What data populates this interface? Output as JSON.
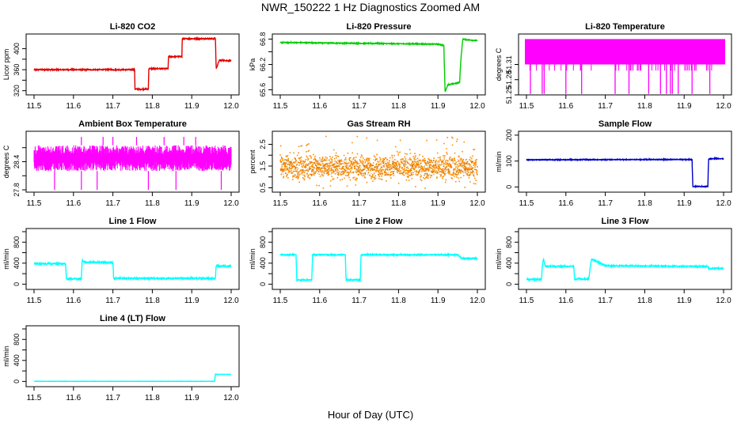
{
  "figure": {
    "title": "NWR_150222  1 Hz Diagnostics Zoomed AM",
    "xlabel": "Hour of Day (UTC)"
  },
  "chart_data": [
    {
      "type": "line",
      "title": "Li-820 CO2",
      "ylabel": "Licor ppm",
      "color": "#e00000",
      "xlim": [
        11.5,
        12.0
      ],
      "ylim": [
        312,
        428
      ],
      "xticks": [
        "11.5",
        "11.6",
        "11.7",
        "11.8",
        "11.9",
        "12.0"
      ],
      "yticks": [
        320,
        360,
        400
      ],
      "yticks_minor": [
        340,
        380
      ],
      "series": [
        {
          "x": [
            11.5,
            11.755,
            11.756,
            11.79,
            11.791,
            11.84,
            11.841,
            11.875,
            11.876,
            11.96,
            11.962,
            11.97,
            12.0
          ],
          "y": [
            360,
            360,
            323,
            323,
            362,
            362,
            385,
            385,
            419,
            419,
            362,
            378,
            377
          ],
          "noise": 1
        }
      ]
    },
    {
      "type": "line",
      "title": "Li-820 Pressure",
      "ylabel": "kPa",
      "color": "#00cc00",
      "xlim": [
        11.5,
        12.0
      ],
      "ylim": [
        65.48,
        66.92
      ],
      "xticks": [
        "11.5",
        "11.6",
        "11.7",
        "11.8",
        "11.9",
        "12.0"
      ],
      "yticks": [
        65.6,
        66.2,
        66.8
      ],
      "yticks_minor": [
        65.9,
        66.5
      ],
      "series": [
        {
          "x": [
            11.5,
            11.7,
            11.9,
            11.915,
            11.918,
            11.925,
            11.95,
            11.955,
            11.958,
            11.963,
            11.97,
            12.0
          ],
          "y": [
            66.72,
            66.7,
            66.68,
            66.65,
            65.55,
            65.72,
            65.76,
            65.78,
            66.3,
            66.8,
            66.79,
            66.76
          ],
          "noise": 0.01
        }
      ]
    },
    {
      "type": "line",
      "title": "Li-820 Temperature",
      "ylabel": "degrees C",
      "color": "#ff00ff",
      "xlim": [
        11.5,
        12.0
      ],
      "ylim": [
        51.25,
        51.37
      ],
      "xticks": [
        "11.5",
        "11.6",
        "11.7",
        "11.8",
        "11.9",
        "12.0"
      ],
      "yticks": [
        51.25,
        51.28,
        51.31
      ],
      "yticks_minor": [],
      "band": [
        51.31,
        51.36
      ],
      "drops": [
        11.51,
        11.54,
        11.545,
        11.6,
        11.64,
        11.725,
        11.76,
        11.81,
        11.84,
        11.855,
        11.865,
        11.87,
        11.885,
        11.92,
        11.965
      ]
    },
    {
      "type": "line",
      "title": "Ambient Box Temperature",
      "ylabel": "degrees C",
      "color": "#ff00ff",
      "xlim": [
        11.5,
        12.0
      ],
      "ylim": [
        27.75,
        29.05
      ],
      "xticks": [
        "11.5",
        "11.6",
        "11.7",
        "11.8",
        "11.9",
        "12.0"
      ],
      "yticks": [
        27.8,
        28.4
      ],
      "yticks_minor": [
        28.1,
        28.7
      ],
      "band": [
        28.2,
        28.75
      ],
      "spikes_low": [
        11.552,
        11.62,
        11.66,
        11.79,
        11.86,
        11.975
      ],
      "spikes_high": [
        11.62,
        11.675,
        11.7,
        11.76,
        11.83,
        11.88,
        11.91
      ]
    },
    {
      "type": "scatter",
      "title": "Gas Stream RH",
      "ylabel": "percent",
      "color": "#ff8c00",
      "xlim": [
        11.5,
        12.0
      ],
      "ylim": [
        0.3,
        3.1
      ],
      "xticks": [
        "11.5",
        "11.6",
        "11.7",
        "11.8",
        "11.9",
        "12.0"
      ],
      "yticks": [
        0.5,
        1.5,
        2.5
      ],
      "yticks_minor": [
        1.0,
        2.0
      ],
      "mean": 1.45,
      "spread": 0.45
    },
    {
      "type": "line",
      "title": "Sample Flow",
      "ylabel": "ml/min",
      "color": "#0000cc",
      "xlim": [
        11.5,
        12.0
      ],
      "ylim": [
        -20,
        215
      ],
      "xticks": [
        "11.5",
        "11.6",
        "11.7",
        "11.8",
        "11.9",
        "12.0"
      ],
      "yticks": [
        0,
        100,
        200
      ],
      "yticks_minor": [],
      "series": [
        {
          "x": [
            11.5,
            11.92,
            11.922,
            11.96,
            11.962,
            11.98,
            12.0
          ],
          "y": [
            105,
            106,
            2,
            2,
            108,
            110,
            108
          ],
          "noise": 1.5
        }
      ]
    },
    {
      "type": "line",
      "title": "Line 1 Flow",
      "ylabel": "ml/min",
      "color": "#00ffff",
      "xlim": [
        11.5,
        12.0
      ],
      "ylim": [
        -100,
        1060
      ],
      "xticks": [
        "11.5",
        "11.6",
        "11.7",
        "11.8",
        "11.9",
        "12.0"
      ],
      "yticks": [
        0,
        400,
        800
      ],
      "yticks_minor": [
        200,
        600,
        1000
      ],
      "series": [
        {
          "x": [
            11.5,
            11.58,
            11.582,
            11.62,
            11.622,
            11.628,
            11.7,
            11.702,
            11.958,
            11.96,
            11.962,
            12.0
          ],
          "y": [
            390,
            390,
            100,
            100,
            450,
            420,
            410,
            110,
            110,
            110,
            350,
            340
          ],
          "noise": 14
        }
      ]
    },
    {
      "type": "line",
      "title": "Line 2 Flow",
      "ylabel": "ml/min",
      "color": "#00ffff",
      "xlim": [
        11.5,
        12.0
      ],
      "ylim": [
        -100,
        1060
      ],
      "xticks": [
        "11.5",
        "11.6",
        "11.7",
        "11.8",
        "11.9",
        "12.0"
      ],
      "yticks": [
        0,
        400,
        800
      ],
      "yticks_minor": [
        200,
        600,
        1000
      ],
      "series": [
        {
          "x": [
            11.5,
            11.54,
            11.542,
            11.58,
            11.582,
            11.665,
            11.667,
            11.703,
            11.705,
            11.95,
            11.96,
            12.0
          ],
          "y": [
            560,
            560,
            80,
            80,
            560,
            560,
            80,
            80,
            560,
            560,
            490,
            490
          ],
          "noise": 10
        }
      ]
    },
    {
      "type": "line",
      "title": "Line 3 Flow",
      "ylabel": "ml/min",
      "color": "#00ffff",
      "xlim": [
        11.5,
        12.0
      ],
      "ylim": [
        -100,
        1060
      ],
      "xticks": [
        "11.5",
        "11.6",
        "11.7",
        "11.8",
        "11.9",
        "12.0"
      ],
      "yticks": [
        0,
        400,
        800
      ],
      "yticks_minor": [
        200,
        600,
        1000
      ],
      "series": [
        {
          "x": [
            11.5,
            11.538,
            11.54,
            11.543,
            11.548,
            11.62,
            11.622,
            11.658,
            11.662,
            11.665,
            11.7,
            11.8,
            11.9,
            11.96,
            11.962,
            12.0
          ],
          "y": [
            90,
            90,
            330,
            480,
            340,
            340,
            100,
            100,
            330,
            480,
            350,
            345,
            340,
            335,
            300,
            300
          ],
          "noise": 12
        }
      ]
    },
    {
      "type": "line",
      "title": "Line 4 (LT) Flow",
      "ylabel": "ml/min",
      "color": "#00ffff",
      "xlim": [
        11.5,
        12.0
      ],
      "ylim": [
        -100,
        1060
      ],
      "xticks": [
        "11.5",
        "11.6",
        "11.7",
        "11.8",
        "11.9",
        "12.0"
      ],
      "yticks": [
        0,
        400,
        800
      ],
      "yticks_minor": [
        200,
        600,
        1000
      ],
      "series": [
        {
          "x": [
            11.5,
            11.958,
            11.96,
            11.962,
            12.0
          ],
          "y": [
            2,
            2,
            140,
            135,
            135
          ],
          "noise": 2
        }
      ]
    }
  ]
}
